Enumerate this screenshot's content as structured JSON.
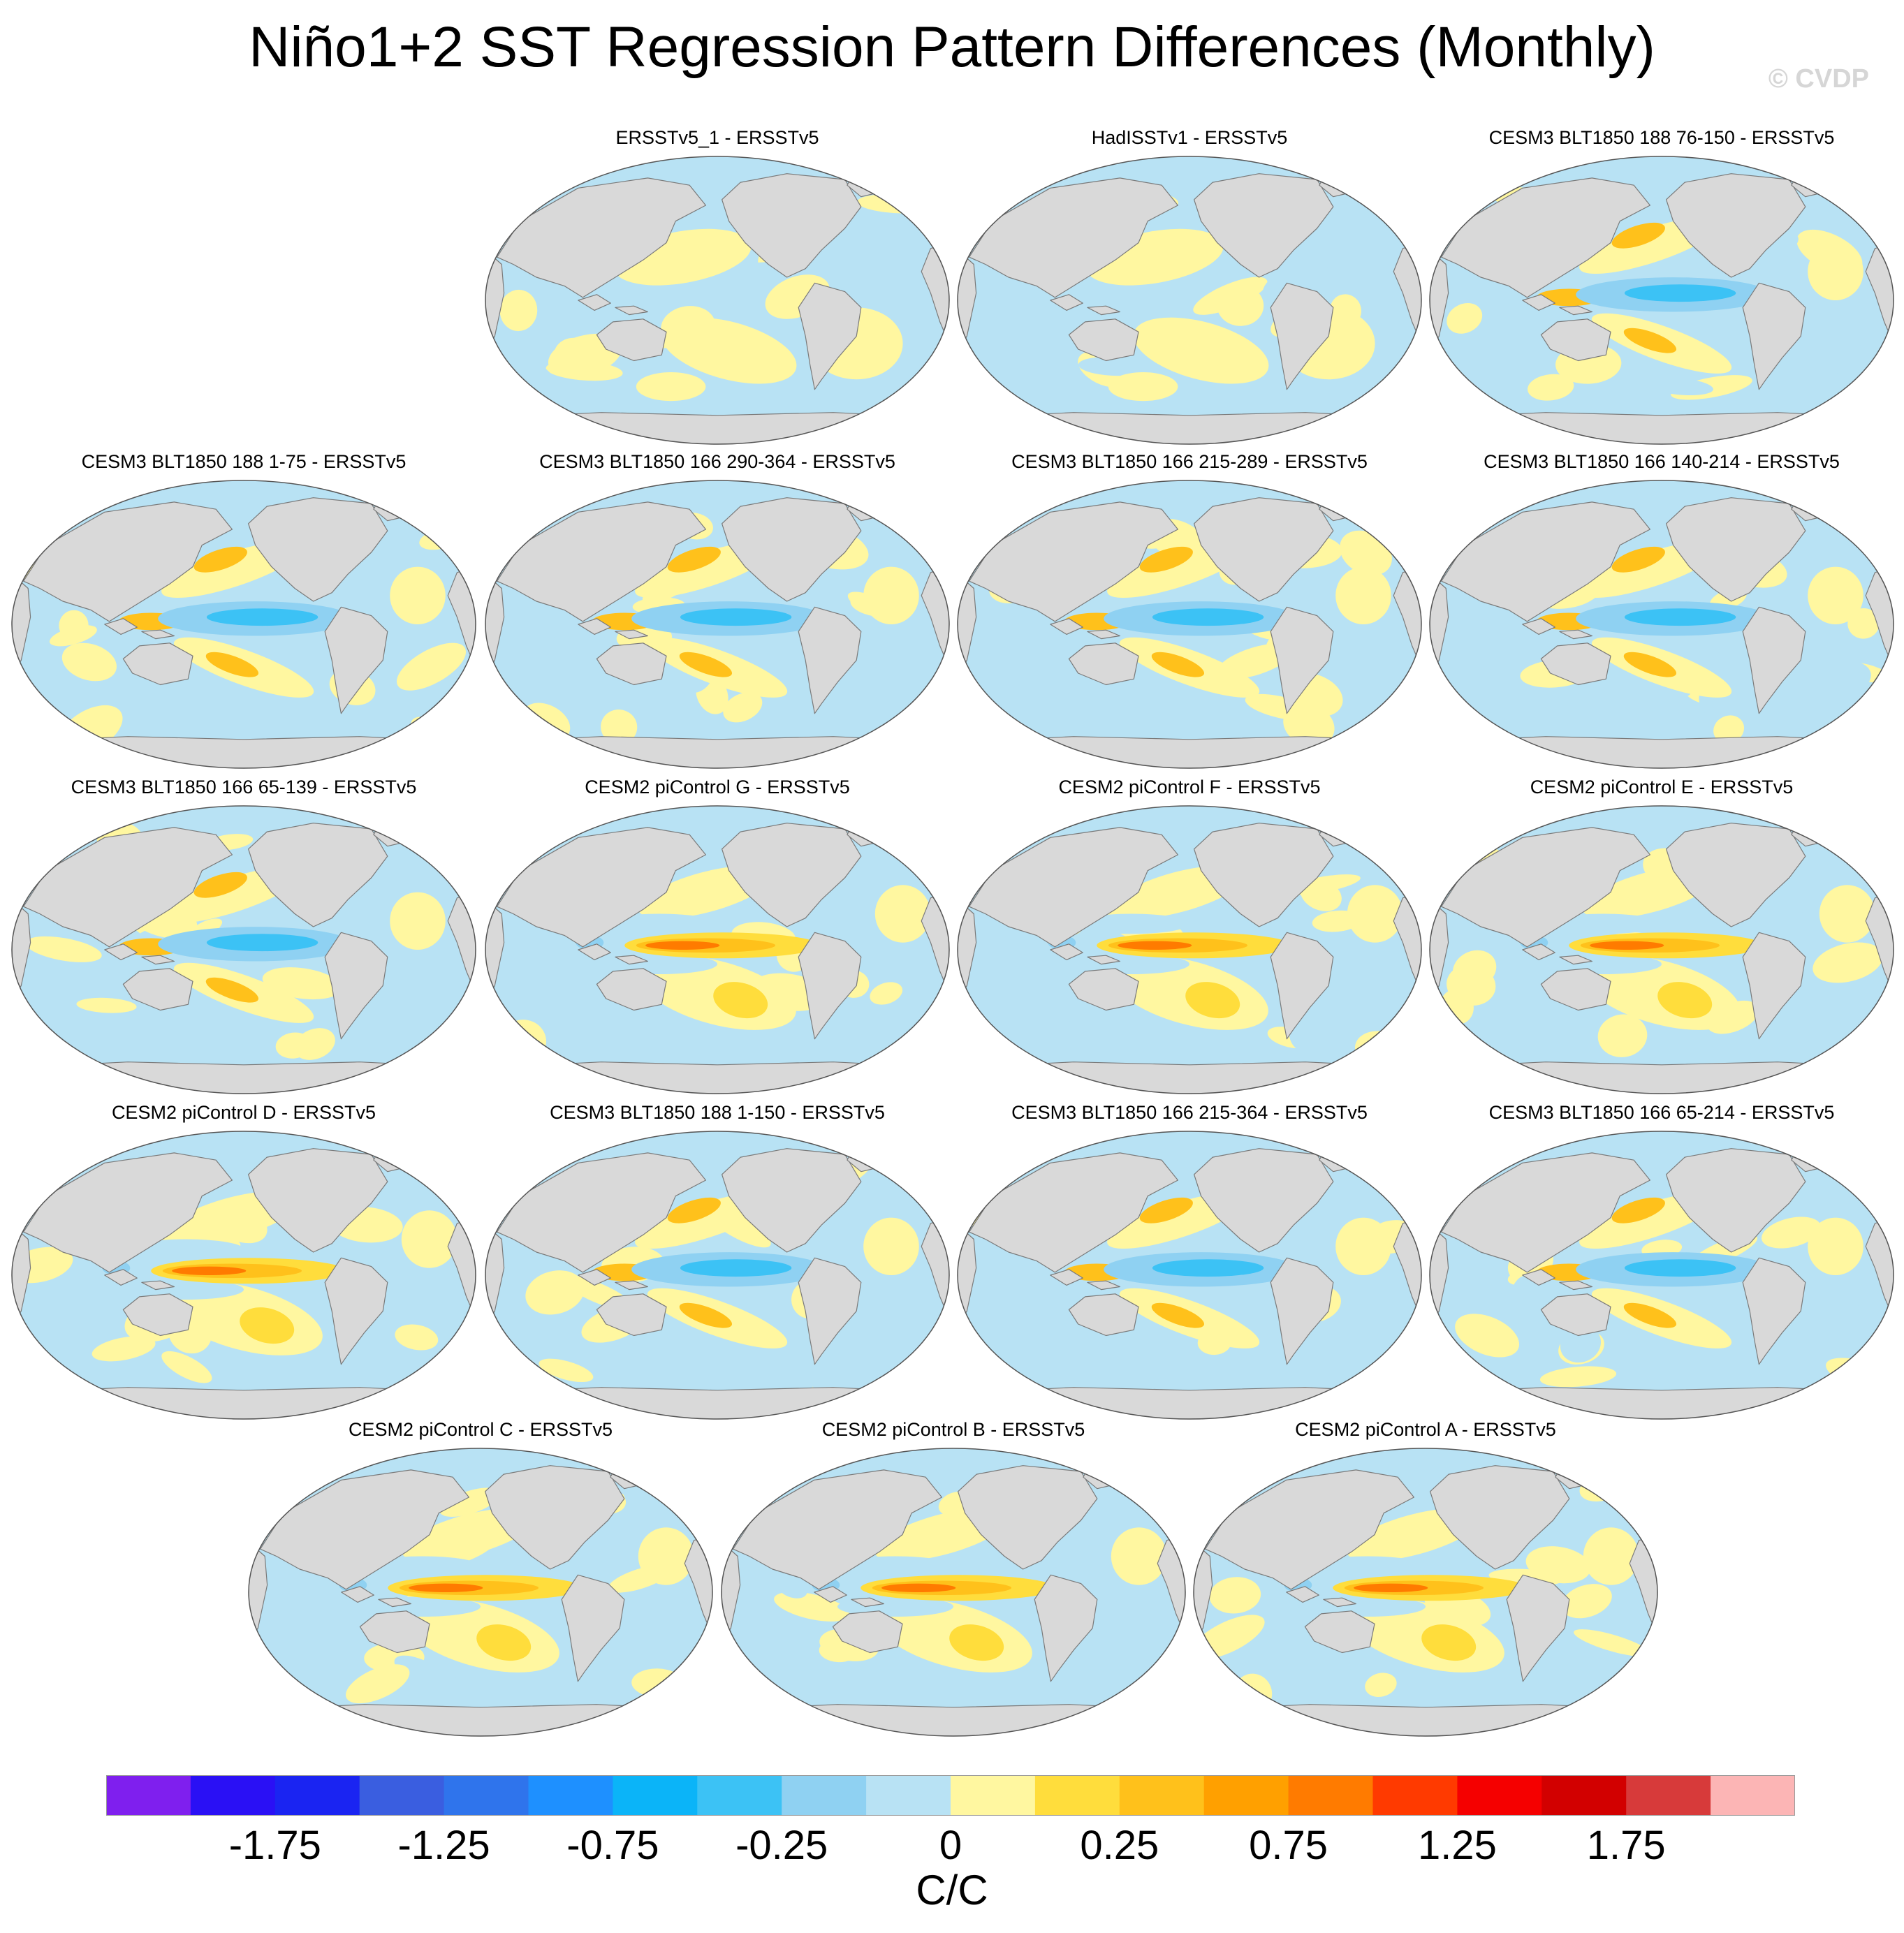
{
  "title": "Niño1+2 SST Regression Pattern Differences (Monthly)",
  "credit": "© CVDP",
  "colors": {
    "land": "#d9d9d9",
    "coast": "#7a7a7a",
    "scale": [
      "#7f1fee",
      "#2a10f5",
      "#1a24f2",
      "#3a5ee0",
      "#2f74ec",
      "#1e90ff",
      "#0bb4f8",
      "#3cc2f5",
      "#8fd1f2",
      "#b8e2f4",
      "#fff7a0",
      "#ffdd3c",
      "#ffc11b",
      "#ffa000",
      "#ff7b00",
      "#ff3a00",
      "#f50000",
      "#d20000",
      "#d73a3a",
      "#fcb5b5"
    ]
  },
  "chart_data": {
    "type": "heatmap",
    "title": "Niño1+2 SST Regression Pattern Differences (Monthly)",
    "projection": "Robinson (global, Pacific-centered)",
    "units": "C/C",
    "colorbar": {
      "levels": [
        -2.25,
        -2.0,
        -1.75,
        -1.5,
        -1.25,
        -1.0,
        -0.75,
        -0.5,
        -0.25,
        -0.125,
        0,
        0.125,
        0.25,
        0.5,
        0.75,
        1.0,
        1.25,
        1.5,
        1.75,
        2.0,
        2.25
      ],
      "tick_labels": [
        "-1.75",
        "-1.25",
        "-0.75",
        "-0.25",
        "0",
        "0.25",
        "0.75",
        "1.25",
        "1.75"
      ],
      "tick_levels": [
        -1.75,
        -1.25,
        -0.75,
        -0.25,
        0,
        0.25,
        0.75,
        1.25,
        1.75
      ],
      "label": "C/C"
    },
    "panels": [
      {
        "label": "ERSSTv5_1 - ERSSTv5",
        "pattern": "weak",
        "eq_min": 0.0,
        "eq_max": 0.1
      },
      {
        "label": "HadISSTv1 - ERSSTv5",
        "pattern": "weak",
        "eq_min": 0.0,
        "eq_max": 0.1
      },
      {
        "label": "CESM3 BLT1850 188 76-150 - ERSSTv5",
        "pattern": "cool",
        "eq_min": -0.5,
        "eq_max": 0.25
      },
      {
        "label": "CESM3 BLT1850 188 1-75 - ERSSTv5",
        "pattern": "cool",
        "eq_min": -0.5,
        "eq_max": 0.25
      },
      {
        "label": "CESM3 BLT1850 166 290-364 - ERSSTv5",
        "pattern": "cool",
        "eq_min": -0.5,
        "eq_max": 0.25
      },
      {
        "label": "CESM3 BLT1850 166 215-289 - ERSSTv5",
        "pattern": "cool",
        "eq_min": -0.5,
        "eq_max": 0.25
      },
      {
        "label": "CESM3 BLT1850 166 140-214 - ERSSTv5",
        "pattern": "cool",
        "eq_min": -0.5,
        "eq_max": 0.25
      },
      {
        "label": "CESM3 BLT1850 166 65-139 - ERSSTv5",
        "pattern": "cool",
        "eq_min": -0.5,
        "eq_max": 0.25
      },
      {
        "label": "CESM2 piControl G - ERSSTv5",
        "pattern": "warm",
        "eq_min": -0.25,
        "eq_max": 0.75
      },
      {
        "label": "CESM2 piControl F - ERSSTv5",
        "pattern": "warm",
        "eq_min": -0.25,
        "eq_max": 0.75
      },
      {
        "label": "CESM2 piControl E - ERSSTv5",
        "pattern": "warm",
        "eq_min": -0.25,
        "eq_max": 0.75
      },
      {
        "label": "CESM2 piControl D - ERSSTv5",
        "pattern": "warm",
        "eq_min": -0.25,
        "eq_max": 0.75
      },
      {
        "label": "CESM3 BLT1850 188 1-150 - ERSSTv5",
        "pattern": "cool",
        "eq_min": -0.5,
        "eq_max": 0.25
      },
      {
        "label": "CESM3 BLT1850 166 215-364 - ERSSTv5",
        "pattern": "cool",
        "eq_min": -0.5,
        "eq_max": 0.25
      },
      {
        "label": "CESM3 BLT1850 166 65-214 - ERSSTv5",
        "pattern": "cool",
        "eq_min": -0.5,
        "eq_max": 0.25
      },
      {
        "label": "CESM2 piControl C - ERSSTv5",
        "pattern": "warm",
        "eq_min": -0.25,
        "eq_max": 0.75
      },
      {
        "label": "CESM2 piControl B - ERSSTv5",
        "pattern": "warm",
        "eq_min": -0.25,
        "eq_max": 0.75
      },
      {
        "label": "CESM2 piControl A - ERSSTv5",
        "pattern": "warm",
        "eq_min": -0.25,
        "eq_max": 0.75
      }
    ]
  }
}
